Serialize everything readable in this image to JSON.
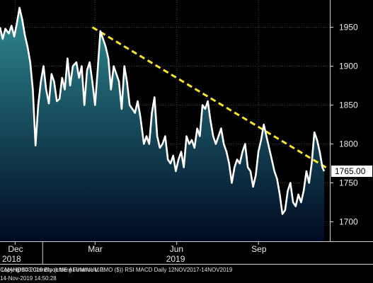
{
  "chart_data": {
    "type": "line",
    "yaxis": {
      "ylim": [
        1675,
        1985
      ],
      "ticks": [
        1700,
        1750,
        1800,
        1850,
        1900,
        1950
      ],
      "side": "right"
    },
    "xaxis": {
      "month_ticks": [
        {
          "label": "Dec",
          "date": "2018-12-01"
        },
        {
          "label": "Mar",
          "date": "2019-03-01"
        },
        {
          "label": "Jun",
          "date": "2019-06-01"
        },
        {
          "label": "Sep",
          "date": "2019-09-01"
        }
      ],
      "year_labels": [
        {
          "label": "2018",
          "date": "2018-11-14"
        },
        {
          "label": "2019",
          "date": "2019-06-01"
        }
      ],
      "start": "2018-11-14",
      "end": "2019-11-14"
    },
    "series": [
      {
        "x": [
          "2018-11-14",
          "2018-11-17",
          "2018-11-20",
          "2018-11-24",
          "2018-11-27",
          "2018-11-30",
          "2018-12-03",
          "2018-12-06",
          "2018-12-09",
          "2018-12-12",
          "2018-12-15",
          "2018-12-18",
          "2018-12-21",
          "2018-12-24",
          "2018-12-27",
          "2018-12-30",
          "2019-01-02",
          "2019-01-05",
          "2019-01-08",
          "2019-01-11",
          "2019-01-14",
          "2019-01-17",
          "2019-01-20",
          "2019-01-23",
          "2019-01-26",
          "2019-01-29",
          "2019-02-01",
          "2019-02-04",
          "2019-02-08",
          "2019-02-11",
          "2019-02-14",
          "2019-02-17",
          "2019-02-20",
          "2019-02-23",
          "2019-02-26",
          "2019-03-01",
          "2019-03-04",
          "2019-03-07",
          "2019-03-10",
          "2019-03-13",
          "2019-03-16",
          "2019-03-19",
          "2019-03-22",
          "2019-03-25",
          "2019-03-28",
          "2019-03-31",
          "2019-04-03",
          "2019-04-06",
          "2019-04-09",
          "2019-04-12",
          "2019-04-15",
          "2019-04-18",
          "2019-04-21",
          "2019-04-25",
          "2019-04-28",
          "2019-05-01",
          "2019-05-04",
          "2019-05-07",
          "2019-05-10",
          "2019-05-13",
          "2019-05-16",
          "2019-05-19",
          "2019-05-22",
          "2019-05-25",
          "2019-05-28",
          "2019-05-31",
          "2019-06-03",
          "2019-06-06",
          "2019-06-09",
          "2019-06-12",
          "2019-06-15",
          "2019-06-18",
          "2019-06-21",
          "2019-06-24",
          "2019-06-27",
          "2019-06-30",
          "2019-07-03",
          "2019-07-06",
          "2019-07-09",
          "2019-07-12",
          "2019-07-15",
          "2019-07-18",
          "2019-07-21",
          "2019-07-24",
          "2019-07-27",
          "2019-07-30",
          "2019-08-02",
          "2019-08-05",
          "2019-08-08",
          "2019-08-11",
          "2019-08-14",
          "2019-08-17",
          "2019-08-20",
          "2019-08-23",
          "2019-08-26",
          "2019-08-29",
          "2019-09-01",
          "2019-09-04",
          "2019-09-07",
          "2019-09-10",
          "2019-09-13",
          "2019-09-16",
          "2019-09-19",
          "2019-09-22",
          "2019-09-25",
          "2019-09-28",
          "2019-10-01",
          "2019-10-04",
          "2019-10-07",
          "2019-10-10",
          "2019-10-13",
          "2019-10-16",
          "2019-10-19",
          "2019-10-22",
          "2019-10-25",
          "2019-10-28",
          "2019-10-31",
          "2019-11-03",
          "2019-11-06",
          "2019-11-09",
          "2019-11-12",
          "2019-11-14"
        ],
        "y": [
          1950,
          1935,
          1948,
          1942,
          1952,
          1938,
          1955,
          1975,
          1960,
          1940,
          1925,
          1905,
          1870,
          1798,
          1850,
          1880,
          1900,
          1870,
          1852,
          1890,
          1880,
          1855,
          1858,
          1885,
          1870,
          1910,
          1875,
          1900,
          1905,
          1885,
          1900,
          1850,
          1895,
          1905,
          1880,
          1850,
          1895,
          1945,
          1935,
          1925,
          1910,
          1870,
          1900,
          1890,
          1880,
          1845,
          1900,
          1880,
          1850,
          1845,
          1840,
          1855,
          1835,
          1800,
          1810,
          1800,
          1840,
          1860,
          1810,
          1795,
          1800,
          1810,
          1780,
          1775,
          1785,
          1765,
          1780,
          1790,
          1770,
          1810,
          1800,
          1805,
          1795,
          1820,
          1810,
          1850,
          1845,
          1855,
          1830,
          1810,
          1800,
          1810,
          1820,
          1800,
          1790,
          1775,
          1750,
          1770,
          1780,
          1775,
          1790,
          1800,
          1770,
          1765,
          1745,
          1760,
          1790,
          1805,
          1825,
          1810,
          1795,
          1780,
          1765,
          1755,
          1735,
          1710,
          1715,
          1740,
          1750,
          1725,
          1720,
          1735,
          1725,
          1740,
          1765,
          1750,
          1775,
          1815,
          1805,
          1790,
          1770,
          1765
        ]
      }
    ],
    "trendline": {
      "x": [
        "2019-02-26",
        "2019-11-14"
      ],
      "y": [
        1950,
        1768
      ]
    },
    "last_value": {
      "label": "1765.00",
      "value": 1765
    },
    "grid": true,
    "colors": {
      "line": "#ffffff",
      "fill_top": "#2e8a92",
      "fill_bottom": "#000a22",
      "trendline": "#f5e32a",
      "grid": "#3a3a3a",
      "background": "#000000",
      "last_badge": "#ffffff"
    }
  },
  "footer": {
    "left": "LMAHDS03 Comdty (LME ALUMINUM  3MO ($)) RSI MACD  Daily 12NOV2017-14NOV2019",
    "right": "Copyright© 2019 Bloomberg Finance L.P.",
    "date": "14-Nov-2019 14:50:28"
  }
}
